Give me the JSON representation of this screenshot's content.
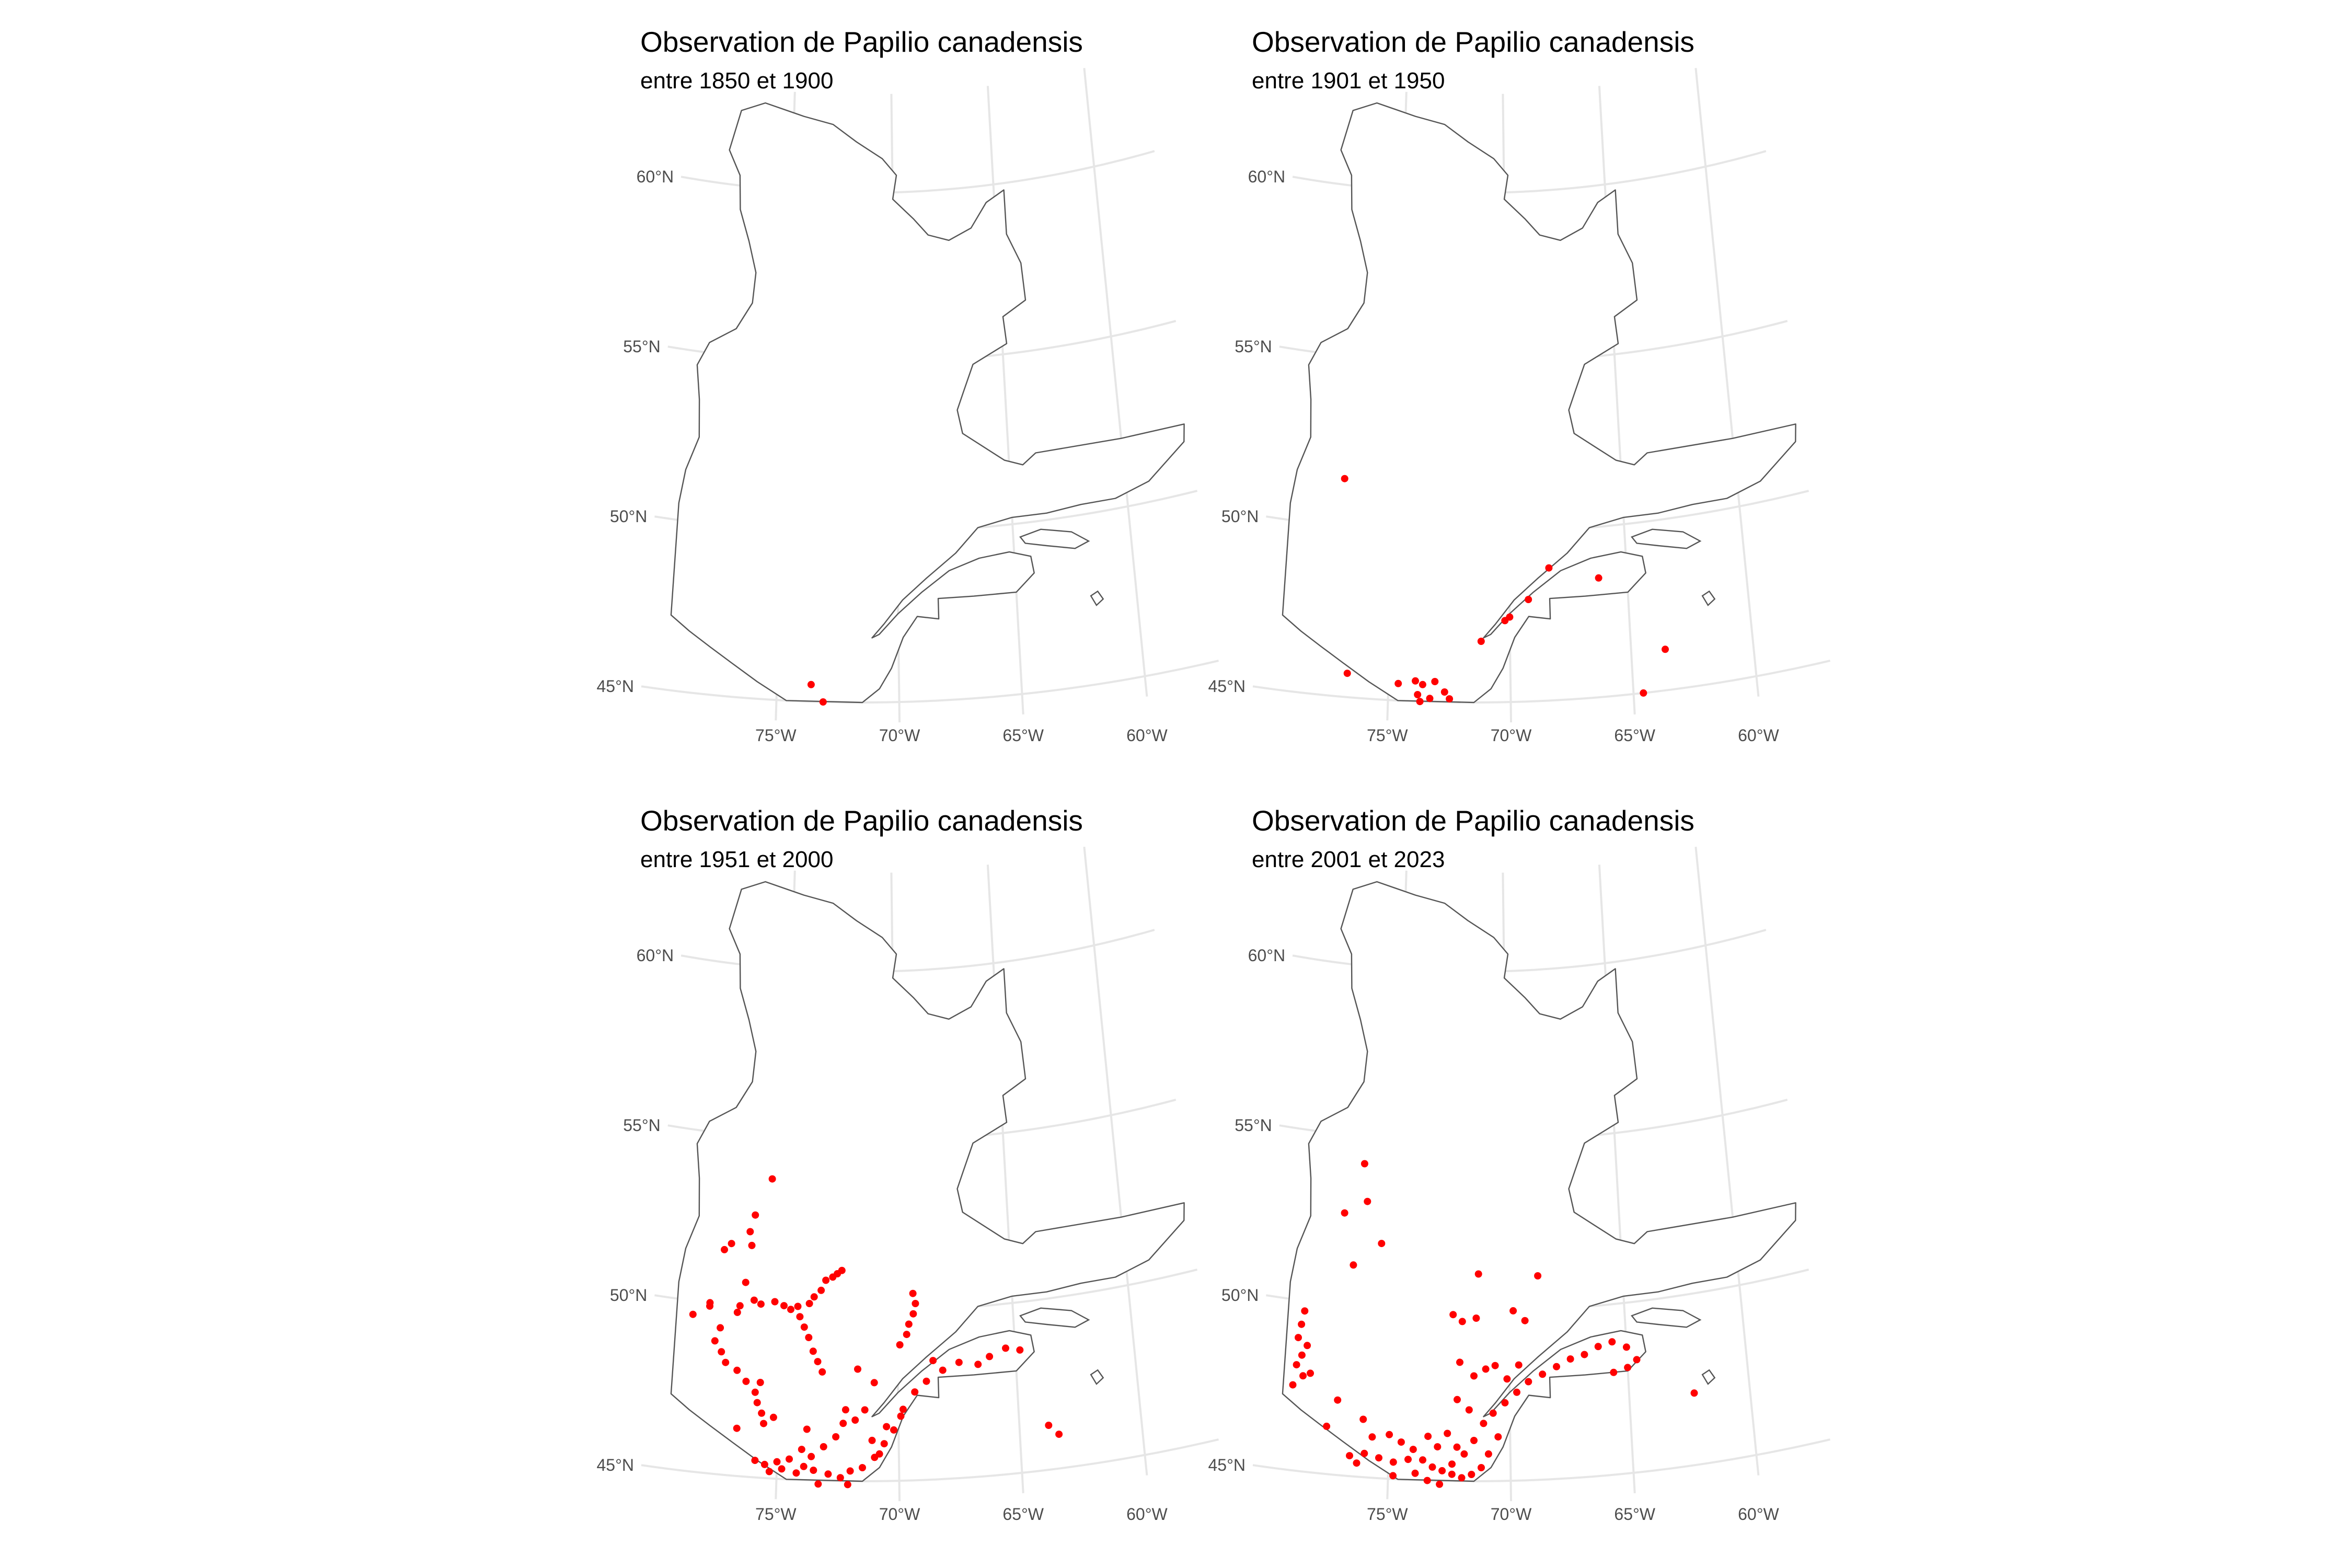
{
  "figure": {
    "panels": [
      {
        "title": "Observation de Papilio canadensis",
        "subtitle": "entre 1850 et 1900"
      },
      {
        "title": "Observation de Papilio canadensis",
        "subtitle": "entre 1901 et 1950"
      },
      {
        "title": "Observation de Papilio canadensis",
        "subtitle": "entre 1951 et 2000"
      },
      {
        "title": "Observation de Papilio canadensis",
        "subtitle": "entre 2001 et 2023"
      }
    ]
  },
  "axes": {
    "lat_labels": [
      "45°N",
      "50°N",
      "55°N",
      "60°N"
    ],
    "lon_labels": [
      "75°W",
      "70°W",
      "65°W",
      "60°W"
    ],
    "lat_values": [
      45,
      50,
      55,
      60
    ],
    "lon_values": [
      -75,
      -70,
      -65,
      -60
    ]
  },
  "colors": {
    "points": "#ff0000",
    "outline": "#555555",
    "grid": "#e6e6e6"
  },
  "chart_data": [
    {
      "type": "scatter",
      "title": "Observation de Papilio canadensis",
      "subtitle": "entre 1850 et 1900",
      "xlabel": "",
      "ylabel": "",
      "xlim": [
        -79.5,
        -57.5
      ],
      "ylim": [
        44.5,
        62.5
      ],
      "grid": true,
      "points": [
        [
          -73.6,
          45.5
        ],
        [
          -73.1,
          45.0
        ]
      ]
    },
    {
      "type": "scatter",
      "title": "Observation de Papilio canadensis",
      "subtitle": "entre 1901 et 1950",
      "xlabel": "",
      "ylabel": "",
      "xlim": [
        -79.5,
        -57.5
      ],
      "ylim": [
        44.5,
        62.5
      ],
      "grid": true,
      "points": [
        [
          -77.2,
          51.4
        ],
        [
          -76.7,
          45.7
        ],
        [
          -74.6,
          45.5
        ],
        [
          -73.9,
          45.6
        ],
        [
          -73.6,
          45.5
        ],
        [
          -73.1,
          45.6
        ],
        [
          -73.8,
          45.2
        ],
        [
          -72.7,
          45.3
        ],
        [
          -72.5,
          45.1
        ],
        [
          -73.3,
          45.1
        ],
        [
          -73.7,
          45.0
        ],
        [
          -71.2,
          46.8
        ],
        [
          -70.2,
          47.4
        ],
        [
          -70.0,
          47.5
        ],
        [
          -69.2,
          48.0
        ],
        [
          -68.3,
          48.9
        ],
        [
          -66.2,
          48.5
        ],
        [
          -64.6,
          45.0
        ],
        [
          -63.6,
          46.2
        ]
      ]
    },
    {
      "type": "scatter",
      "title": "Observation de Papilio canadensis",
      "subtitle": "entre 1951 et 2000",
      "xlabel": "",
      "ylabel": "",
      "xlim": [
        -79.5,
        -57.5
      ],
      "ylim": [
        44.5,
        62.5
      ],
      "grid": true,
      "points": [
        [
          -75.6,
          53.8
        ],
        [
          -76.3,
          52.7
        ],
        [
          -76.5,
          52.2
        ],
        [
          -76.4,
          51.8
        ],
        [
          -77.3,
          51.8
        ],
        [
          -77.6,
          51.6
        ],
        [
          -78.8,
          49.6
        ],
        [
          -78.1,
          49.9
        ],
        [
          -78.1,
          50.0
        ],
        [
          -76.6,
          50.7
        ],
        [
          -76.2,
          50.2
        ],
        [
          -76.9,
          49.8
        ],
        [
          -77.6,
          49.3
        ],
        [
          -77.8,
          48.9
        ],
        [
          -77.5,
          48.6
        ],
        [
          -77.3,
          48.3
        ],
        [
          -76.8,
          48.1
        ],
        [
          -76.4,
          47.8
        ],
        [
          -76.0,
          47.5
        ],
        [
          -75.9,
          47.2
        ],
        [
          -75.7,
          46.9
        ],
        [
          -75.6,
          46.6
        ],
        [
          -76.7,
          46.4
        ],
        [
          -76.8,
          50.0
        ],
        [
          -75.9,
          50.1
        ],
        [
          -75.3,
          50.2
        ],
        [
          -74.9,
          50.1
        ],
        [
          -74.6,
          50.0
        ],
        [
          -74.3,
          50.1
        ],
        [
          -73.8,
          50.2
        ],
        [
          -73.6,
          50.4
        ],
        [
          -73.3,
          50.6
        ],
        [
          -73.1,
          50.9
        ],
        [
          -72.8,
          51.0
        ],
        [
          -72.6,
          51.1
        ],
        [
          -72.4,
          51.2
        ],
        [
          -74.2,
          49.8
        ],
        [
          -74.0,
          49.5
        ],
        [
          -73.8,
          49.2
        ],
        [
          -73.6,
          48.8
        ],
        [
          -73.4,
          48.5
        ],
        [
          -73.2,
          48.2
        ],
        [
          -71.7,
          48.3
        ],
        [
          -69.3,
          49.9
        ],
        [
          -69.2,
          50.2
        ],
        [
          -69.3,
          50.5
        ],
        [
          -69.5,
          49.6
        ],
        [
          -69.6,
          49.3
        ],
        [
          -69.9,
          49.0
        ],
        [
          -71.0,
          47.9
        ],
        [
          -71.4,
          47.1
        ],
        [
          -71.8,
          46.8
        ],
        [
          -72.3,
          46.7
        ],
        [
          -72.6,
          46.3
        ],
        [
          -73.1,
          46.0
        ],
        [
          -73.6,
          45.7
        ],
        [
          -74.0,
          45.9
        ],
        [
          -74.5,
          45.6
        ],
        [
          -75.0,
          45.5
        ],
        [
          -75.5,
          45.4
        ],
        [
          -75.9,
          45.5
        ],
        [
          -75.3,
          45.2
        ],
        [
          -74.8,
          45.3
        ],
        [
          -74.2,
          45.2
        ],
        [
          -73.9,
          45.4
        ],
        [
          -73.5,
          45.3
        ],
        [
          -72.9,
          45.2
        ],
        [
          -72.4,
          45.1
        ],
        [
          -72.0,
          45.3
        ],
        [
          -71.5,
          45.4
        ],
        [
          -71.0,
          45.7
        ],
        [
          -70.6,
          46.1
        ],
        [
          -70.2,
          46.5
        ],
        [
          -69.8,
          47.1
        ],
        [
          -69.3,
          47.6
        ],
        [
          -68.8,
          47.9
        ],
        [
          -68.1,
          48.2
        ],
        [
          -67.4,
          48.4
        ],
        [
          -66.6,
          48.3
        ],
        [
          -66.1,
          48.5
        ],
        [
          -65.4,
          48.7
        ],
        [
          -64.8,
          48.6
        ],
        [
          -68.5,
          48.5
        ],
        [
          -69.9,
          46.9
        ],
        [
          -70.5,
          46.6
        ],
        [
          -71.1,
          46.2
        ],
        [
          -70.8,
          45.8
        ],
        [
          -72.2,
          47.1
        ],
        [
          -73.8,
          46.5
        ],
        [
          -75.2,
          46.8
        ],
        [
          -75.8,
          47.8
        ],
        [
          -63.8,
          46.3
        ],
        [
          -63.4,
          46.0
        ],
        [
          -73.3,
          44.9
        ],
        [
          -72.1,
          44.9
        ]
      ]
    },
    {
      "type": "scatter",
      "title": "Observation de Papilio canadensis",
      "subtitle": "entre 2001 et 2023",
      "xlabel": "",
      "ylabel": "",
      "xlim": [
        -79.5,
        -57.5
      ],
      "ylim": [
        44.5,
        62.5
      ],
      "grid": true,
      "points": [
        [
          -76.5,
          54.2
        ],
        [
          -76.3,
          53.1
        ],
        [
          -77.3,
          52.7
        ],
        [
          -75.6,
          51.9
        ],
        [
          -76.8,
          51.2
        ],
        [
          -71.3,
          51.1
        ],
        [
          -68.7,
          51.0
        ],
        [
          -69.8,
          50.0
        ],
        [
          -69.3,
          49.7
        ],
        [
          -72.4,
          49.9
        ],
        [
          -72.0,
          49.7
        ],
        [
          -71.4,
          49.8
        ],
        [
          -78.8,
          49.7
        ],
        [
          -78.9,
          49.3
        ],
        [
          -79.0,
          48.9
        ],
        [
          -78.6,
          48.7
        ],
        [
          -78.8,
          48.4
        ],
        [
          -79.0,
          48.1
        ],
        [
          -78.7,
          47.8
        ],
        [
          -79.1,
          47.5
        ],
        [
          -78.4,
          47.9
        ],
        [
          -77.2,
          47.2
        ],
        [
          -76.1,
          46.7
        ],
        [
          -77.6,
          46.4
        ],
        [
          -75.0,
          46.3
        ],
        [
          -74.5,
          46.1
        ],
        [
          -74.0,
          45.9
        ],
        [
          -73.6,
          45.6
        ],
        [
          -73.2,
          45.4
        ],
        [
          -72.8,
          45.3
        ],
        [
          -72.4,
          45.2
        ],
        [
          -72.0,
          45.1
        ],
        [
          -71.6,
          45.2
        ],
        [
          -71.2,
          45.4
        ],
        [
          -74.8,
          45.5
        ],
        [
          -75.4,
          45.6
        ],
        [
          -76.0,
          45.7
        ],
        [
          -76.6,
          45.6
        ],
        [
          -73.9,
          45.2
        ],
        [
          -73.4,
          45.0
        ],
        [
          -72.9,
          44.9
        ],
        [
          -72.4,
          45.5
        ],
        [
          -71.9,
          45.8
        ],
        [
          -71.5,
          46.2
        ],
        [
          -71.1,
          46.7
        ],
        [
          -70.7,
          47.0
        ],
        [
          -70.2,
          47.3
        ],
        [
          -69.7,
          47.6
        ],
        [
          -69.2,
          47.9
        ],
        [
          -68.6,
          48.1
        ],
        [
          -68.0,
          48.3
        ],
        [
          -67.4,
          48.5
        ],
        [
          -66.8,
          48.6
        ],
        [
          -66.2,
          48.8
        ],
        [
          -65.6,
          48.9
        ],
        [
          -65.0,
          48.7
        ],
        [
          -64.6,
          48.3
        ],
        [
          -65.0,
          48.1
        ],
        [
          -65.6,
          48.0
        ],
        [
          -72.6,
          46.4
        ],
        [
          -72.2,
          46.0
        ],
        [
          -73.0,
          46.0
        ],
        [
          -73.4,
          46.3
        ],
        [
          -74.2,
          45.6
        ],
        [
          -74.8,
          45.1
        ],
        [
          -70.9,
          45.8
        ],
        [
          -70.5,
          46.3
        ],
        [
          -71.7,
          47.1
        ],
        [
          -72.2,
          47.4
        ],
        [
          -71.5,
          48.1
        ],
        [
          -71.0,
          48.3
        ],
        [
          -70.6,
          48.4
        ],
        [
          -72.1,
          48.5
        ],
        [
          -70.1,
          48.0
        ],
        [
          -69.6,
          48.4
        ],
        [
          -62.3,
          47.1
        ],
        [
          -75.7,
          46.2
        ],
        [
          -76.3,
          45.4
        ]
      ]
    }
  ]
}
